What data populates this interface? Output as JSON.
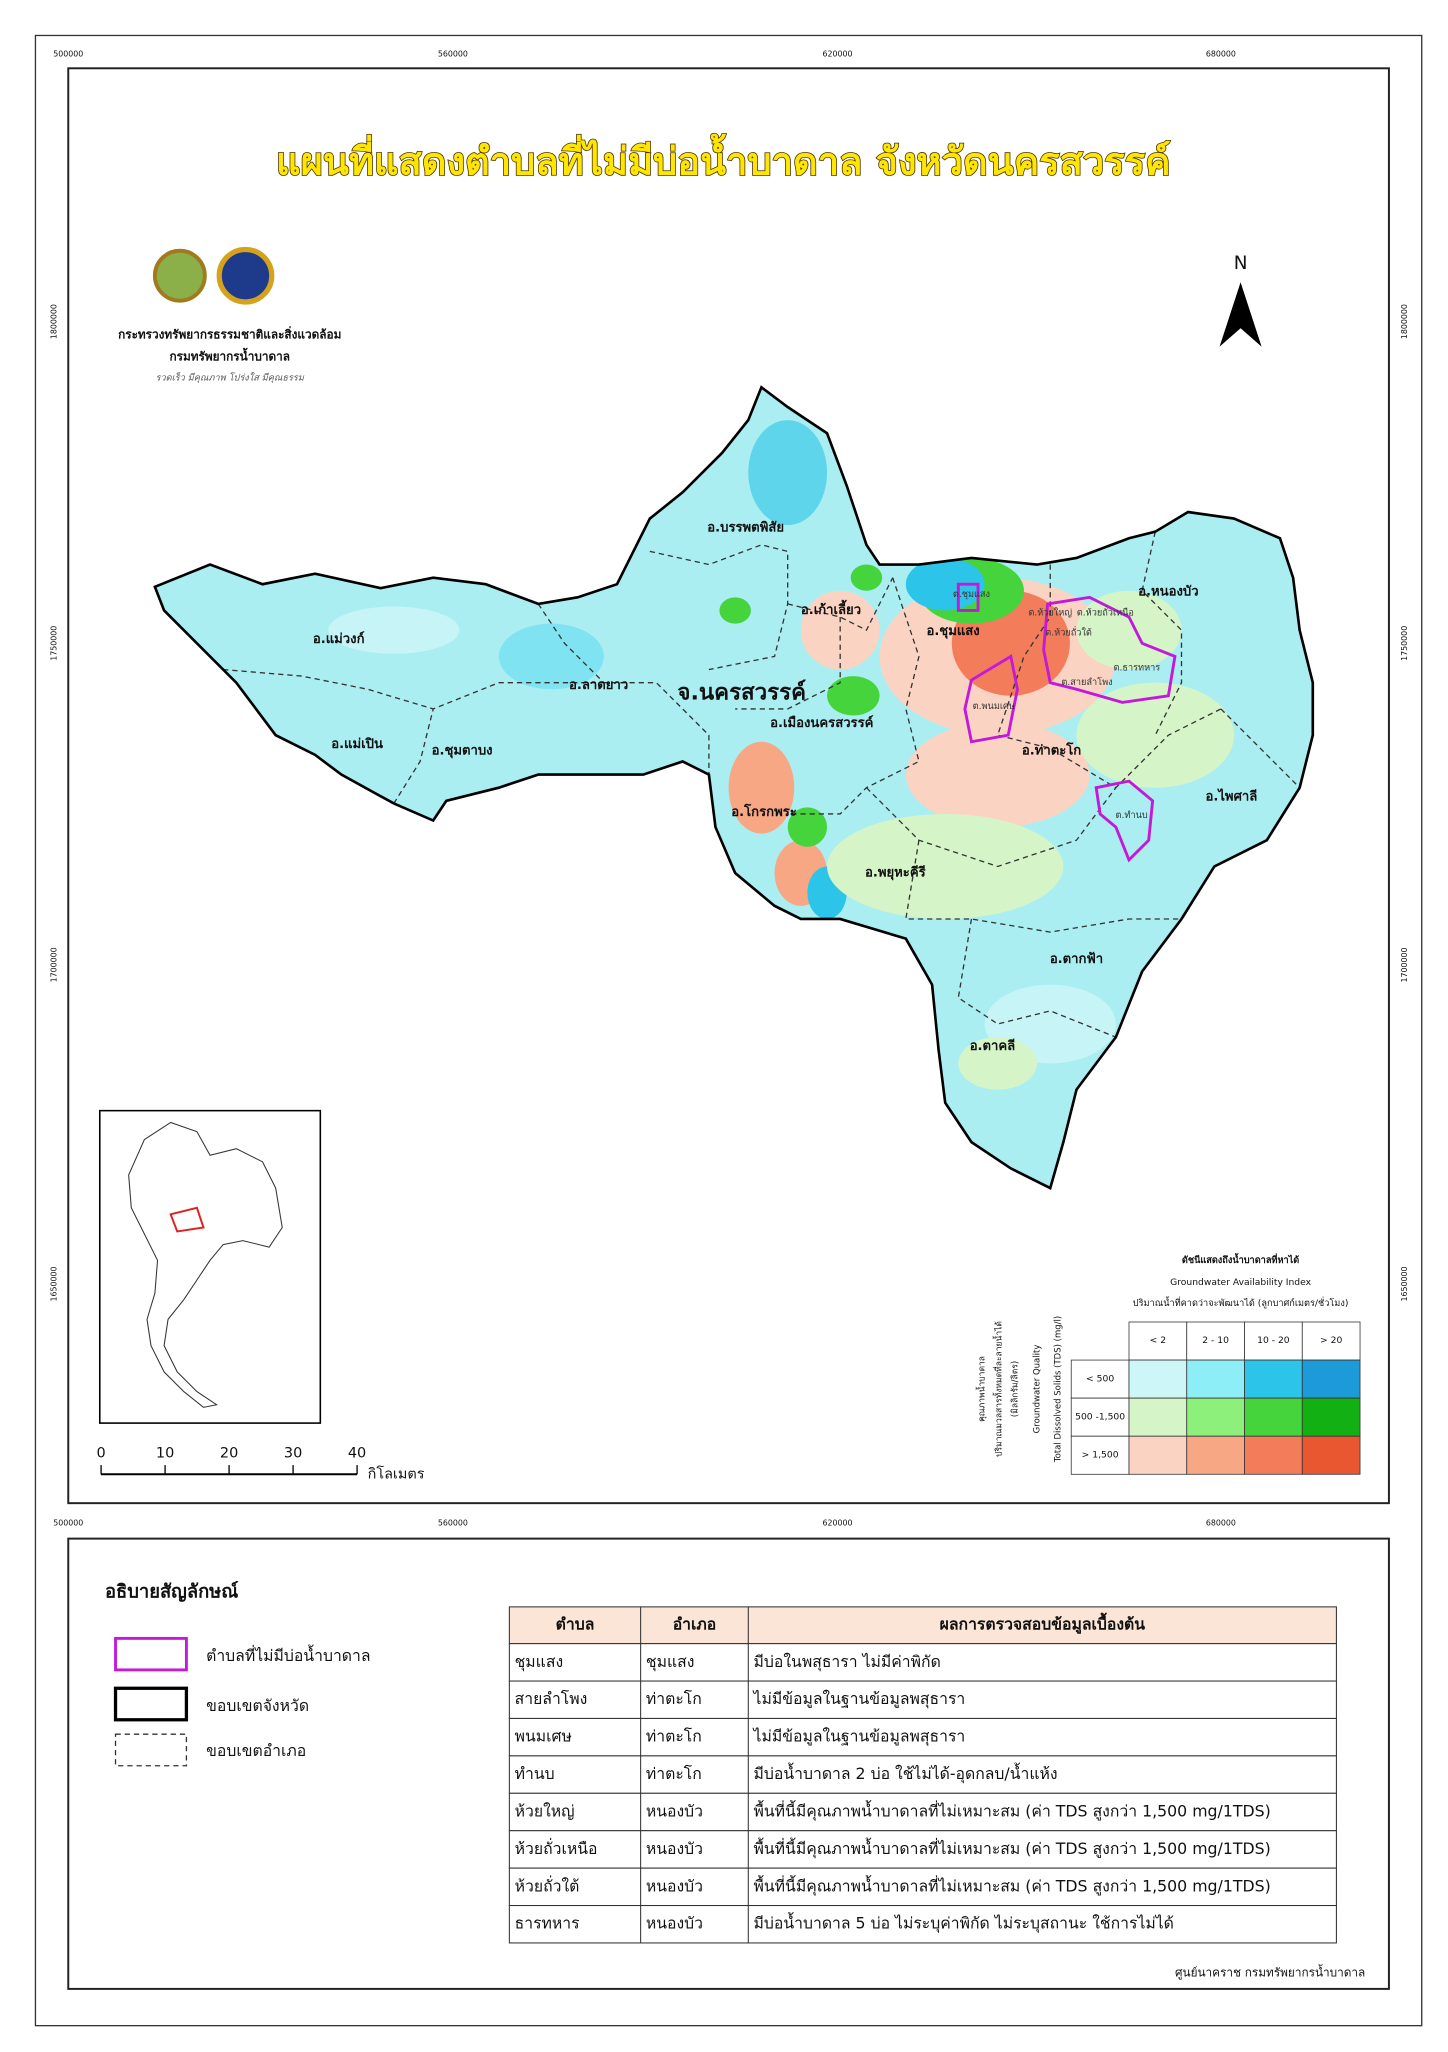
{
  "title": "แผนที่แสดงตำบลที่ไม่มีบ่อน้ำบาดาล จังหวัดนครสวรรค์",
  "header": {
    "ministry": "กระทรวงทรัพยากรธรรมชาติและสิ่งแวดล้อม",
    "department": "กรมทรัพยากรน้ำบาดาล",
    "motto": "รวดเร็ว มีคุณภาพ โปร่งใส มีคุณธรรม"
  },
  "north": "N",
  "grid": {
    "x": [
      500000,
      560000,
      620000,
      680000
    ],
    "y": [
      1800000,
      1750000,
      1700000,
      1650000
    ]
  },
  "province_label": "จ.นครสวรรค์",
  "districts": [
    "อ.บรรพตพิสัย",
    "อ.เก้าเลี้ยว",
    "อ.แม่วงก์",
    "อ.ลาดยาว",
    "อ.เมืองนครสวรรค์",
    "อ.แม่เปิน",
    "อ.ชุมตาบง",
    "อ.ชุมแสง",
    "อ.หนองบัว",
    "อ.ท่าตะโก",
    "อ.ไพศาลี",
    "อ.โกรกพระ",
    "อ.พยุหะคีรี",
    "อ.ตากฟ้า",
    "อ.ตาคลี"
  ],
  "subdistricts": [
    "ต.ชุมแสง",
    "ต.ห้วยใหญ่",
    "ต.ห้วยถั่วเหนือ",
    "ต.ห้วยถั่วใต้",
    "ต.สายลำโพง",
    "ต.ธารทหาร",
    "ต.พนมเศษ",
    "ต.ทำนบ"
  ],
  "scale": {
    "ticks": [
      0,
      10,
      20,
      30,
      40
    ],
    "unit": "กิโลเมตร"
  },
  "index_legend": {
    "title_th": "ดัชนีแสดงถึงน้ำบาดาลที่หาได้",
    "title_en": "Groundwater Availability Index",
    "subtitle": "ปริมาณน้ำที่คาดว่าจะพัฒนาได้ (ลูกบาศก์เมตร/ชั่วโมง)",
    "quality_th": "คุณภาพน้ำบาดาล",
    "quality_th2": "ปริมาณมวลสารทั้งหมดที่ละลายน้ำได้",
    "quality_unit_th": "(มิลลิกรัม/ลิตร)",
    "quality_en": "Groundwater Quality",
    "tds_en": "Total Dissolved Solids (TDS) (mg/l)",
    "columns": [
      "< 2",
      "2 - 10",
      "10 - 20",
      "> 20"
    ],
    "rows": [
      "< 500",
      "500 -1,500",
      "> 1,500"
    ],
    "colors": [
      [
        "#cdf6f9",
        "#8eeef7",
        "#2cc4e8",
        "#1d9ad8"
      ],
      [
        "#d5f5c9",
        "#8cf07a",
        "#46d43c",
        "#13b013"
      ],
      [
        "#fbd3c2",
        "#f8a784",
        "#f37c5b",
        "#e85730"
      ]
    ]
  },
  "legend": {
    "title": "อธิบายสัญลักษณ์",
    "items": [
      "ตำบลที่ไม่มีบ่อน้ำบาดาล",
      "ขอบเขตจังหวัด",
      "ขอบเขตอำเภอ"
    ]
  },
  "table": {
    "headers": [
      "ตำบล",
      "อำเภอ",
      "ผลการตรวจสอบข้อมูลเบื้องต้น"
    ],
    "rows": [
      [
        "ชุมแสง",
        "ชุมแสง",
        "มีบ่อในพสุธารา ไม่มีค่าพิกัด"
      ],
      [
        "สายลำโพง",
        "ท่าตะโก",
        "ไม่มีข้อมูลในฐานข้อมูลพสุธารา"
      ],
      [
        "พนมเศษ",
        "ท่าตะโก",
        "ไม่มีข้อมูลในฐานข้อมูลพสุธารา"
      ],
      [
        "ทำนบ",
        "ท่าตะโก",
        "มีบ่อน้ำบาดาล 2 บ่อ ใช้ไม่ได้-อุดกลบ/น้ำแห้ง"
      ],
      [
        "ห้วยใหญ่",
        "หนองบัว",
        "พื้นที่นี้มีคุณภาพน้ำบาดาลที่ไม่เหมาะสม (ค่า TDS สูงกว่า 1,500 mg/1TDS)"
      ],
      [
        "ห้วยถั่วเหนือ",
        "หนองบัว",
        "พื้นที่นี้มีคุณภาพน้ำบาดาลที่ไม่เหมาะสม (ค่า TDS สูงกว่า 1,500 mg/1TDS)"
      ],
      [
        "ห้วยถั่วใต้",
        "หนองบัว",
        "พื้นที่นี้มีคุณภาพน้ำบาดาลที่ไม่เหมาะสม (ค่า TDS สูงกว่า 1,500 mg/1TDS)"
      ],
      [
        "ธารทหาร",
        "หนองบัว",
        "มีบ่อน้ำบาดาล 5 บ่อ ไม่ระบุค่าพิกัด ไม่ระบุสถานะ ใช้การไม่ได้"
      ]
    ]
  },
  "credit": "ศูนย์นาคราช กรมทรัพยากรน้ำบาดาล"
}
